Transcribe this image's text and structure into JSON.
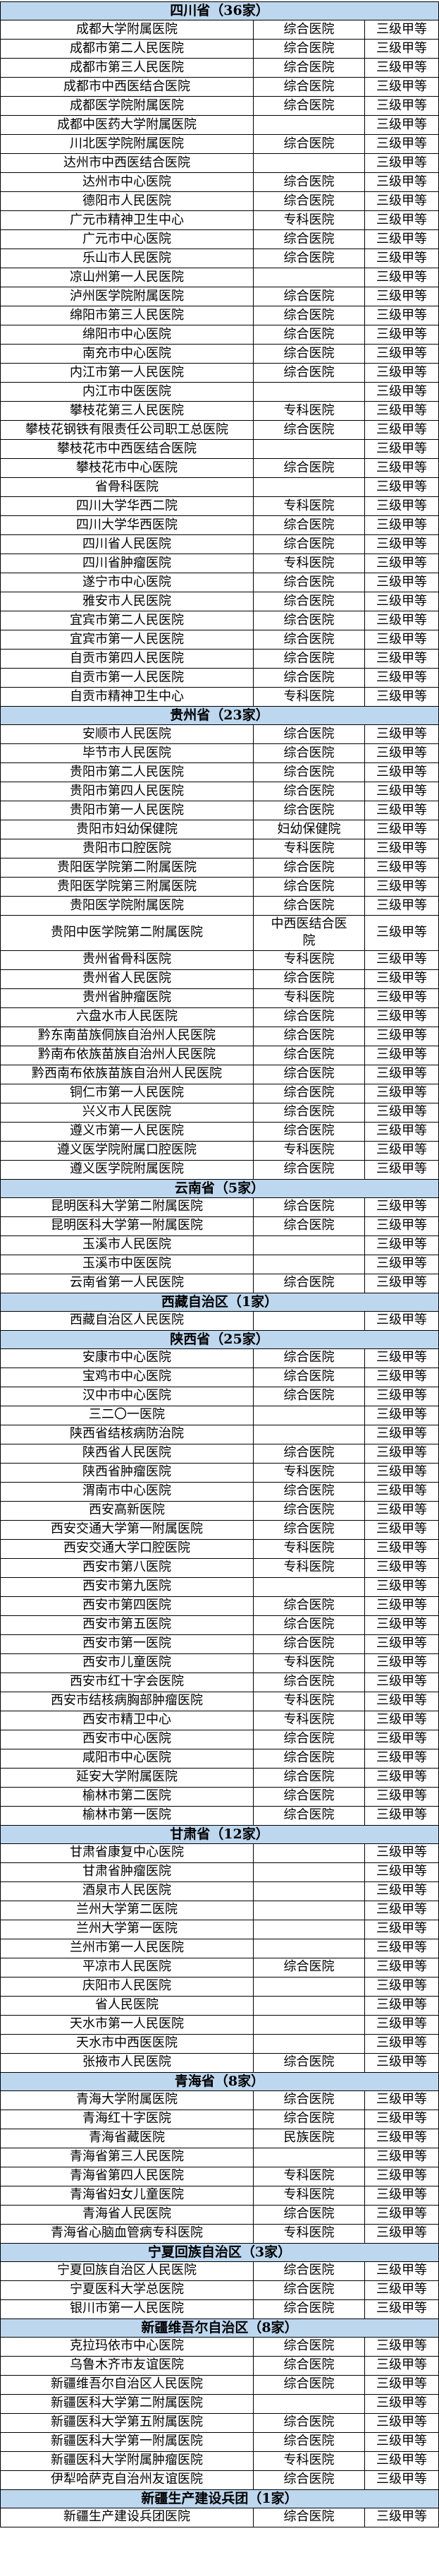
{
  "colors": {
    "section_header_bg": "#BDD7EE",
    "grid_border": "#000000",
    "text": "#000000"
  },
  "table": {
    "sections": [
      {
        "title": "四川省（36家）",
        "rows": [
          [
            "成都大学附属医院",
            "综合医院",
            "三级甲等"
          ],
          [
            "成都市第二人民医院",
            "综合医院",
            "三级甲等"
          ],
          [
            "成都市第三人民医院",
            "综合医院",
            "三级甲等"
          ],
          [
            "成都市中西医结合医院",
            "综合医院",
            "三级甲等"
          ],
          [
            "成都医学院附属医院",
            "综合医院",
            "三级甲等"
          ],
          [
            "成都中医药大学附属医院",
            "",
            "三级甲等"
          ],
          [
            "川北医学院附属医院",
            "综合医院",
            "三级甲等"
          ],
          [
            "达州市中西医结合医院",
            "",
            "三级甲等"
          ],
          [
            "达州市中心医院",
            "综合医院",
            "三级甲等"
          ],
          [
            "德阳市人民医院",
            "综合医院",
            "三级甲等"
          ],
          [
            "广元市精神卫生中心",
            "专科医院",
            "三级甲等"
          ],
          [
            "广元市中心医院",
            "综合医院",
            "三级甲等"
          ],
          [
            "乐山市人民医院",
            "综合医院",
            "三级甲等"
          ],
          [
            "凉山州第一人民医院",
            "",
            "三级甲等"
          ],
          [
            "泸州医学院附属医院",
            "综合医院",
            "三级甲等"
          ],
          [
            "绵阳市第三人民医院",
            "综合医院",
            "三级甲等"
          ],
          [
            "绵阳市中心医院",
            "综合医院",
            "三级甲等"
          ],
          [
            "南充市中心医院",
            "综合医院",
            "三级甲等"
          ],
          [
            "内江市第一人民医院",
            "综合医院",
            "三级甲等"
          ],
          [
            "内江市中医医院",
            "",
            "三级甲等"
          ],
          [
            "攀枝花第三人民医院",
            "专科医院",
            "三级甲等"
          ],
          [
            "攀枝花钢铁有限责任公司职工总医院",
            "综合医院",
            "三级甲等"
          ],
          [
            "攀枝花市中西医结合医院",
            "",
            "三级甲等"
          ],
          [
            "攀枝花市中心医院",
            "综合医院",
            "三级甲等"
          ],
          [
            "省骨科医院",
            "",
            "三级甲等"
          ],
          [
            "四川大学华西二院",
            "专科医院",
            "三级甲等"
          ],
          [
            "四川大学华西医院",
            "综合医院",
            "三级甲等"
          ],
          [
            "四川省人民医院",
            "综合医院",
            "三级甲等"
          ],
          [
            "四川省肿瘤医院",
            "专科医院",
            "三级甲等"
          ],
          [
            "遂宁市中心医院",
            "综合医院",
            "三级甲等"
          ],
          [
            "雅安市人民医院",
            "综合医院",
            "三级甲等"
          ],
          [
            "宜宾市第二人民医院",
            "综合医院",
            "三级甲等"
          ],
          [
            "宜宾市第一人民医院",
            "综合医院",
            "三级甲等"
          ],
          [
            "自贡市第四人民医院",
            "综合医院",
            "三级甲等"
          ],
          [
            "自贡市第一人民医院",
            "综合医院",
            "三级甲等"
          ],
          [
            "自贡市精神卫生中心",
            "专科医院",
            "三级甲等"
          ]
        ]
      },
      {
        "title": "贵州省（23家）",
        "rows": [
          [
            "安顺市人民医院",
            "综合医院",
            "三级甲等"
          ],
          [
            "毕节市人民医院",
            "综合医院",
            "三级甲等"
          ],
          [
            "贵阳市第二人民医院",
            "综合医院",
            "三级甲等"
          ],
          [
            "贵阳市第四人民医院",
            "综合医院",
            "三级甲等"
          ],
          [
            "贵阳市第一人民医院",
            "综合医院",
            "三级甲等"
          ],
          [
            "贵阳市妇幼保健院",
            "妇幼保健院",
            "三级甲等"
          ],
          [
            "贵阳市口腔医院",
            "专科医院",
            "三级甲等"
          ],
          [
            "贵阳医学院第二附属医院",
            "综合医院",
            "三级甲等"
          ],
          [
            "贵阳医学院第三附属医院",
            "综合医院",
            "三级甲等"
          ],
          [
            "贵阳医学院附属医院",
            "综合医院",
            "三级甲等"
          ],
          [
            "贵阳中医学院第二附属医院",
            "中西医结合医院",
            "三级甲等"
          ],
          [
            "贵州省骨科医院",
            "专科医院",
            "三级甲等"
          ],
          [
            "贵州省人民医院",
            "综合医院",
            "三级甲等"
          ],
          [
            "贵州省肿瘤医院",
            "专科医院",
            "三级甲等"
          ],
          [
            "六盘水市人民医院",
            "综合医院",
            "三级甲等"
          ],
          [
            "黔东南苗族侗族自治州人民医院",
            "综合医院",
            "三级甲等"
          ],
          [
            "黔南布依族苗族自治州人民医院",
            "综合医院",
            "三级甲等"
          ],
          [
            "黔西南布依族苗族自治州人民医院",
            "综合医院",
            "三级甲等"
          ],
          [
            "铜仁市第一人民医院",
            "综合医院",
            "三级甲等"
          ],
          [
            "兴义市人民医院",
            "综合医院",
            "三级甲等"
          ],
          [
            "遵义市第一人民医院",
            "综合医院",
            "三级甲等"
          ],
          [
            "遵义医学院附属口腔医院",
            "专科医院",
            "三级甲等"
          ],
          [
            "遵义医学院附属医院",
            "综合医院",
            "三级甲等"
          ]
        ]
      },
      {
        "title": "云南省（5家）",
        "rows": [
          [
            "昆明医科大学第二附属医院",
            "综合医院",
            "三级甲等"
          ],
          [
            "昆明医科大学第一附属医院",
            "综合医院",
            "三级甲等"
          ],
          [
            "玉溪市人民医院",
            "",
            "三级甲等"
          ],
          [
            "玉溪市中医医院",
            "",
            "三级甲等"
          ],
          [
            "云南省第一人民医院",
            "综合医院",
            "三级甲等"
          ]
        ]
      },
      {
        "title": "西藏自治区（1家）",
        "rows": [
          [
            "西藏自治区人民医院",
            "",
            "三级甲等"
          ]
        ]
      },
      {
        "title": "陕西省（25家）",
        "rows": [
          [
            "安康市中心医院",
            "综合医院",
            "三级甲等"
          ],
          [
            "宝鸡市中心医院",
            "综合医院",
            "三级甲等"
          ],
          [
            "汉中市中心医院",
            "综合医院",
            "三级甲等"
          ],
          [
            "三二〇一医院",
            "",
            "三级甲等"
          ],
          [
            "陕西省结核病防治院",
            "",
            "三级甲等"
          ],
          [
            "陕西省人民医院",
            "综合医院",
            "三级甲等"
          ],
          [
            "陕西省肿瘤医院",
            "专科医院",
            "三级甲等"
          ],
          [
            "渭南市中心医院",
            "综合医院",
            "三级甲等"
          ],
          [
            "西安高新医院",
            "综合医院",
            "三级甲等"
          ],
          [
            "西安交通大学第一附属医院",
            "综合医院",
            "三级甲等"
          ],
          [
            "西安交通大学口腔医院",
            "专科医院",
            "三级甲等"
          ],
          [
            "西安市第八医院",
            "专科医院",
            "三级甲等"
          ],
          [
            "西安市第九医院",
            "",
            "三级甲等"
          ],
          [
            "西安市第四医院",
            "综合医院",
            "三级甲等"
          ],
          [
            "西安市第五医院",
            "综合医院",
            "三级甲等"
          ],
          [
            "西安市第一医院",
            "综合医院",
            "三级甲等"
          ],
          [
            "西安市儿童医院",
            "专科医院",
            "三级甲等"
          ],
          [
            "西安市红十字会医院",
            "综合医院",
            "三级甲等"
          ],
          [
            "西安市结核病胸部肿瘤医院",
            "专科医院",
            "三级甲等"
          ],
          [
            "西安市精卫中心",
            "专科医院",
            "三级甲等"
          ],
          [
            "西安市中心医院",
            "综合医院",
            "三级甲等"
          ],
          [
            "咸阳市中心医院",
            "综合医院",
            "三级甲等"
          ],
          [
            "延安大学附属医院",
            "综合医院",
            "三级甲等"
          ],
          [
            "榆林市第二医院",
            "综合医院",
            "三级甲等"
          ],
          [
            "榆林市第一医院",
            "综合医院",
            "三级甲等"
          ]
        ]
      },
      {
        "title": "甘肃省（12家）",
        "rows": [
          [
            "甘肃省康复中心医院",
            "",
            "三级甲等"
          ],
          [
            "甘肃省肿瘤医院",
            "",
            "三级甲等"
          ],
          [
            "酒泉市人民医院",
            "",
            "三级甲等"
          ],
          [
            "兰州大学第二医院",
            "",
            "三级甲等"
          ],
          [
            "兰州大学第一医院",
            "",
            "三级甲等"
          ],
          [
            "兰州市第一人民医院",
            "",
            "三级甲等"
          ],
          [
            "平凉市人民医院",
            "综合医院",
            "三级甲等"
          ],
          [
            "庆阳市人民医院",
            "",
            "三级甲等"
          ],
          [
            "省人民医院",
            "",
            "三级甲等"
          ],
          [
            "天水市第一人民医院",
            "",
            "三级甲等"
          ],
          [
            "天水市中西医医院",
            "",
            "三级甲等"
          ],
          [
            "张掖市人民医院",
            "综合医院",
            "三级甲等"
          ]
        ]
      },
      {
        "title": "青海省（8家）",
        "rows": [
          [
            "青海大学附属医院",
            "综合医院",
            "三级甲等"
          ],
          [
            "青海红十字医院",
            "综合医院",
            "三级甲等"
          ],
          [
            "青海省藏医院",
            "民族医院",
            "三级甲等"
          ],
          [
            "青海省第三人民医院",
            "",
            "三级甲等"
          ],
          [
            "青海省第四人民医院",
            "专科医院",
            "三级甲等"
          ],
          [
            "青海省妇女儿童医院",
            "专科医院",
            "三级甲等"
          ],
          [
            "青海省人民医院",
            "综合医院",
            "三级甲等"
          ],
          [
            "青海省心脑血管病专科医院",
            "专科医院",
            "三级甲等"
          ]
        ]
      },
      {
        "title": "宁夏回族自治区（3家）",
        "rows": [
          [
            "宁夏回族自治区人民医院",
            "综合医院",
            "三级甲等"
          ],
          [
            "宁夏医科大学总医院",
            "综合医院",
            "三级甲等"
          ],
          [
            "银川市第一人民医院",
            "综合医院",
            "三级甲等"
          ]
        ]
      },
      {
        "title": "新疆维吾尔自治区（8家）",
        "rows": [
          [
            "克拉玛依市中心医院",
            "综合医院",
            "三级甲等"
          ],
          [
            "乌鲁木齐市友谊医院",
            "综合医院",
            "三级甲等"
          ],
          [
            "新疆维吾尔自治区人民医院",
            "综合医院",
            "三级甲等"
          ],
          [
            "新疆医科大学第二附属医院",
            "",
            "三级甲等"
          ],
          [
            "新疆医科大学第五附属医院",
            "综合医院",
            "三级甲等"
          ],
          [
            "新疆医科大学第一附属医院",
            "综合医院",
            "三级甲等"
          ],
          [
            "新疆医科大学附属肿瘤医院",
            "专科医院",
            "三级甲等"
          ],
          [
            "伊犁哈萨克自治州友谊医院",
            "综合医院",
            "三级甲等"
          ]
        ]
      },
      {
        "title": "新疆生产建设兵团（1家）",
        "rows": [
          [
            "新疆生产建设兵团医院",
            "综合医院",
            "三级甲等"
          ]
        ]
      }
    ]
  }
}
